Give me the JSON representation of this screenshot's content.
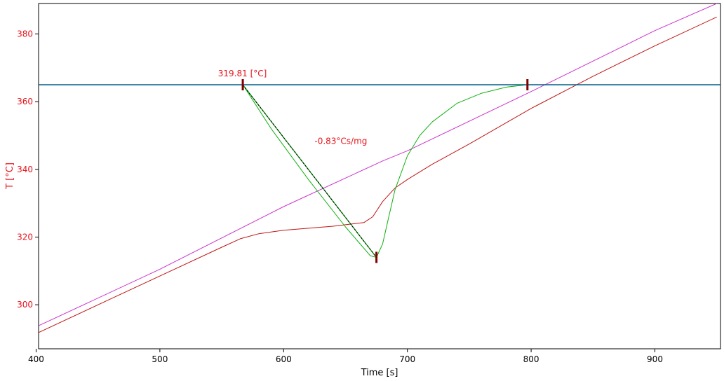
{
  "chart_data": {
    "type": "line",
    "xlabel": "Time [s]",
    "ylabel": "T  [°C]",
    "xlim": [
      402,
      953
    ],
    "ylim": [
      287,
      389
    ],
    "x_ticks": [
      400,
      500,
      600,
      700,
      800,
      900
    ],
    "y_ticks": [
      300,
      320,
      340,
      360,
      380
    ],
    "grid": false,
    "colors": {
      "ylabel": "#e8141c",
      "ytick": "#e8141c",
      "xtick": "#000000",
      "magenta": "#cc33cc",
      "red": "#c01414",
      "green": "#10b010",
      "baseline": "#005f8a",
      "marker": "#800000",
      "annotation": "#e8141c"
    },
    "series": [
      {
        "color": "#cc33cc",
        "x": [
          402,
          500,
          600,
          680,
          700,
          800,
          900,
          950
        ],
        "y": [
          293.8,
          310.5,
          329.0,
          342.5,
          345.5,
          363.0,
          381.0,
          389.0
        ]
      },
      {
        "color": "#c01414",
        "x": [
          402,
          450,
          500,
          550,
          565,
          580,
          600,
          640,
          665,
          672,
          680,
          690,
          700,
          720,
          750,
          800,
          850,
          900,
          950
        ],
        "y": [
          291.8,
          300.0,
          308.5,
          317.0,
          319.5,
          321.0,
          322.0,
          323.2,
          324.3,
          326.0,
          330.5,
          334.5,
          337.0,
          341.5,
          347.5,
          358.0,
          367.5,
          376.5,
          385.0
        ]
      },
      {
        "color": "#10b010",
        "x": [
          567,
          590,
          620,
          650,
          670,
          675,
          680,
          685,
          690,
          700,
          710,
          720,
          740,
          760,
          780,
          797
        ],
        "y": [
          365.0,
          352.0,
          337.0,
          323.0,
          314.5,
          314.0,
          318.0,
          326.0,
          334.0,
          344.0,
          350.0,
          354.0,
          359.5,
          362.5,
          364.3,
          365.0
        ]
      }
    ],
    "baseline": {
      "y": 365.0,
      "x_start": 402,
      "x_end": 953
    },
    "tangent": {
      "from": [
        567,
        365.0
      ],
      "to": [
        675,
        314.0
      ]
    },
    "markers": [
      {
        "x": 567,
        "y": 365.0
      },
      {
        "x": 675,
        "y": 314.0
      },
      {
        "x": 797,
        "y": 365.0
      }
    ],
    "annotations": [
      {
        "text": "319.81 [°C]",
        "x": 547,
        "y": 367.5
      },
      {
        "text": "-0.83°Cs/mg",
        "x": 625,
        "y": 347.5
      }
    ]
  }
}
